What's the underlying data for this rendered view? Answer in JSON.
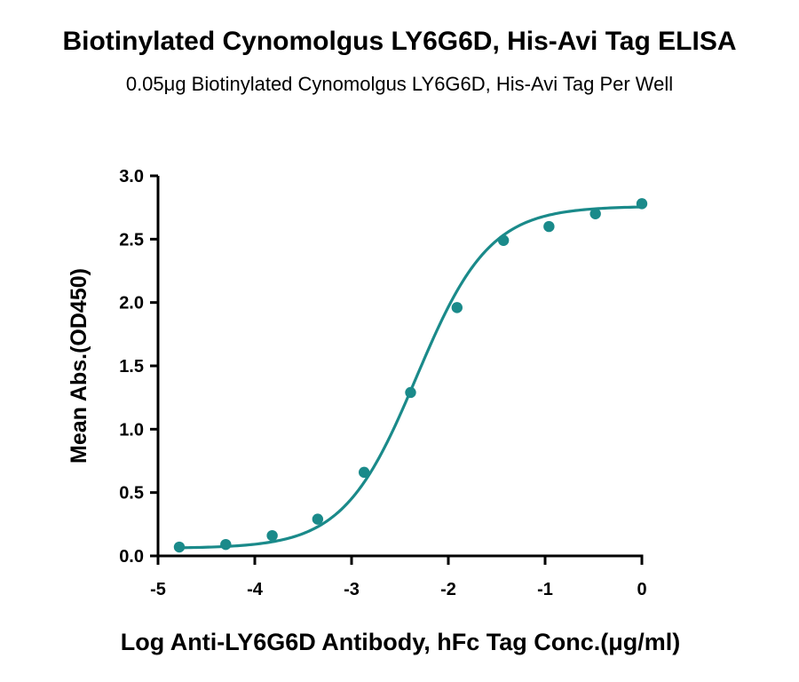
{
  "chart_data": {
    "type": "scatter",
    "title": "Biotinylated Cynomolgus LY6G6D, His-Avi Tag ELISA",
    "subtitle": "0.05μg Biotinylated Cynomolgus LY6G6D, His-Avi Tag Per Well",
    "xlabel": "Log Anti-LY6G6D Antibody, hFc Tag Conc.(μg/ml)",
    "ylabel": "Mean Abs.(OD450)",
    "xlim": [
      -5,
      0
    ],
    "ylim": [
      0,
      3.0
    ],
    "xticks": [
      -5,
      -4,
      -3,
      -2,
      -1,
      0
    ],
    "xtick_labels": [
      "-5",
      "-4",
      "-3",
      "-2",
      "-1",
      "0"
    ],
    "yticks": [
      0,
      0.5,
      1.0,
      1.5,
      2.0,
      2.5,
      3.0
    ],
    "ytick_labels": [
      "0.0",
      "0.5",
      "1.0",
      "1.5",
      "2.0",
      "2.5",
      "3.0"
    ],
    "grid": false,
    "legend": "none",
    "color": "#1a8a8a",
    "series": [
      {
        "x": [
          -4.78,
          -4.3,
          -3.82,
          -3.35,
          -2.87,
          -2.39,
          -1.91,
          -1.43,
          -0.96,
          -0.48,
          0.0
        ],
        "y": [
          0.07,
          0.09,
          0.16,
          0.29,
          0.66,
          1.29,
          1.96,
          2.49,
          2.6,
          2.7,
          2.78
        ]
      }
    ],
    "fit": {
      "model": "4PL",
      "bottom": 0.06,
      "top": 2.76,
      "log_ec50": -2.33,
      "hill": 1.15
    }
  }
}
